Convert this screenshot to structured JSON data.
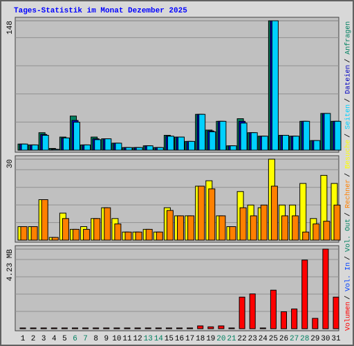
{
  "title": "Tages-Statistik im Monat Dezember 2025",
  "separator": "/",
  "days": [
    "1",
    "2",
    "3",
    "4",
    "5",
    "6",
    "7",
    "8",
    "9",
    "10",
    "11",
    "12",
    "13",
    "14",
    "15",
    "16",
    "17",
    "18",
    "19",
    "20",
    "21",
    "22",
    "23",
    "24",
    "25",
    "26",
    "27",
    "28",
    "29",
    "30",
    "31"
  ],
  "weekend_indices": [
    5,
    6,
    12,
    13,
    19,
    20,
    26,
    27
  ],
  "weekend_color": "#008060",
  "chart_data": [
    {
      "type": "bar",
      "ylim": [
        0,
        148
      ],
      "yticks": [
        148
      ],
      "series": [
        {
          "name": "Anfragen",
          "color": "#008060",
          "values": [
            7,
            6,
            20,
            2,
            15,
            39,
            6,
            15,
            13,
            8,
            3,
            3,
            5,
            3,
            17,
            15,
            10,
            41,
            23,
            33,
            5,
            36,
            20,
            16,
            148,
            17,
            16,
            33,
            11,
            42,
            33
          ]
        },
        {
          "name": "Dateien",
          "color": "#0000c0",
          "values": [
            7,
            6,
            18,
            1,
            14,
            34,
            6,
            13,
            13,
            8,
            3,
            3,
            5,
            3,
            16,
            15,
            10,
            41,
            22,
            33,
            5,
            33,
            20,
            16,
            148,
            17,
            16,
            33,
            11,
            42,
            33
          ]
        },
        {
          "name": "Seiten",
          "color": "#00d0ff",
          "values": [
            7,
            6,
            17,
            1,
            14,
            32,
            6,
            12,
            13,
            8,
            3,
            3,
            5,
            3,
            16,
            15,
            10,
            41,
            21,
            33,
            5,
            31,
            20,
            16,
            148,
            17,
            16,
            33,
            11,
            42,
            33
          ]
        }
      ]
    },
    {
      "type": "bar",
      "ylim": [
        0,
        30
      ],
      "yticks": [
        30
      ],
      "series": [
        {
          "name": "Besuche",
          "color": "#ffff00",
          "values": [
            5,
            5,
            15,
            1,
            10,
            4,
            5,
            8,
            12,
            8,
            3,
            3,
            4,
            3,
            12,
            9,
            9,
            20,
            22,
            9,
            5,
            18,
            13,
            12,
            30,
            13,
            13,
            21,
            8,
            24,
            21
          ]
        },
        {
          "name": "Rechner",
          "color": "#ff8000",
          "values": [
            5,
            5,
            15,
            1,
            8,
            4,
            4,
            8,
            12,
            6,
            3,
            3,
            4,
            3,
            11,
            9,
            9,
            20,
            19,
            9,
            5,
            12,
            9,
            13,
            20,
            9,
            9,
            3,
            6,
            7,
            13
          ]
        }
      ]
    },
    {
      "type": "bar",
      "ylim": [
        0,
        4.23
      ],
      "yticks": [
        {
          "value": 4.23,
          "label": "4.23 MB"
        }
      ],
      "series": [
        {
          "name": "Volumen",
          "color": "#ff0000",
          "values": [
            0.04,
            0.04,
            0.04,
            0.04,
            0.04,
            0.04,
            0.04,
            0.04,
            0.04,
            0.04,
            0.04,
            0.04,
            0.04,
            0.04,
            0.04,
            0.04,
            0.04,
            0.15,
            0.1,
            0.15,
            0.04,
            1.68,
            1.85,
            0.04,
            2.05,
            0.9,
            1.05,
            3.65,
            0.55,
            4.23,
            1.68
          ]
        }
      ],
      "extra_legend": [
        {
          "name": "Vol. In",
          "color": "#0040ff"
        },
        {
          "name": "Vol. Out",
          "color": "#008060"
        }
      ]
    }
  ]
}
